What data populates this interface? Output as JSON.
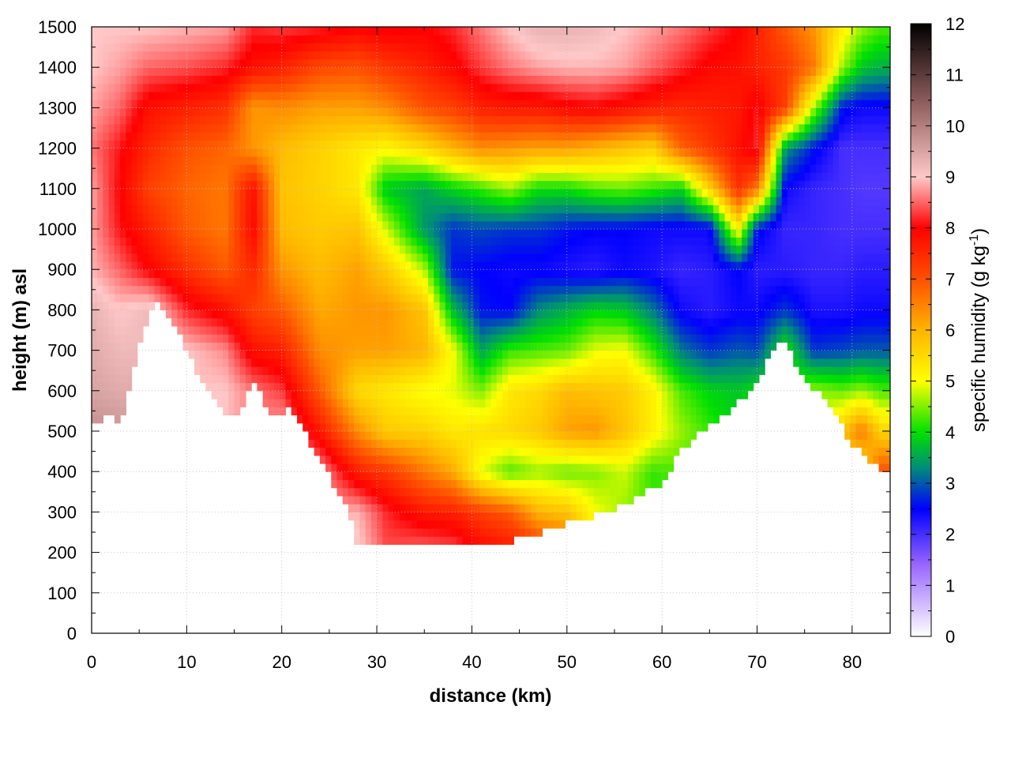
{
  "chart_data": {
    "type": "heatmap",
    "title": "",
    "xlabel": "distance (km)",
    "ylabel": "height (m) asl",
    "colorbar_label": "specific humidity (g kg",
    "colorbar_label_sup": "-1",
    "colorbar_label_end": ")",
    "xlim": [
      0,
      84
    ],
    "ylim": [
      0,
      1500
    ],
    "clim": [
      0,
      12
    ],
    "x_ticks": [
      {
        "value": 0,
        "label": "0"
      },
      {
        "value": 10,
        "label": "10"
      },
      {
        "value": 20,
        "label": "20"
      },
      {
        "value": 30,
        "label": "30"
      },
      {
        "value": 40,
        "label": "40"
      },
      {
        "value": 50,
        "label": "50"
      },
      {
        "value": 60,
        "label": "60"
      },
      {
        "value": 70,
        "label": "70"
      },
      {
        "value": 80,
        "label": "80"
      }
    ],
    "y_ticks": [
      {
        "value": 0,
        "label": "0"
      },
      {
        "value": 100,
        "label": "100"
      },
      {
        "value": 200,
        "label": "200"
      },
      {
        "value": 300,
        "label": "300"
      },
      {
        "value": 400,
        "label": "400"
      },
      {
        "value": 500,
        "label": "500"
      },
      {
        "value": 600,
        "label": "600"
      },
      {
        "value": 700,
        "label": "700"
      },
      {
        "value": 800,
        "label": "800"
      },
      {
        "value": 900,
        "label": "900"
      },
      {
        "value": 1000,
        "label": "1000"
      },
      {
        "value": 1100,
        "label": "1100"
      },
      {
        "value": 1200,
        "label": "1200"
      },
      {
        "value": 1300,
        "label": "1300"
      },
      {
        "value": 1400,
        "label": "1400"
      },
      {
        "value": 1500,
        "label": "1500"
      }
    ],
    "colorbar_ticks": [
      {
        "value": 0,
        "label": "0"
      },
      {
        "value": 1,
        "label": "1"
      },
      {
        "value": 2,
        "label": "2"
      },
      {
        "value": 3,
        "label": "3"
      },
      {
        "value": 4,
        "label": "4"
      },
      {
        "value": 5,
        "label": "5"
      },
      {
        "value": 6,
        "label": "6"
      },
      {
        "value": 7,
        "label": "7"
      },
      {
        "value": 8,
        "label": "8"
      },
      {
        "value": 9,
        "label": "9"
      },
      {
        "value": 10,
        "label": "10"
      },
      {
        "value": 11,
        "label": "11"
      },
      {
        "value": 12,
        "label": "12"
      }
    ],
    "colormap": [
      {
        "value": 0,
        "color": "#ffffff"
      },
      {
        "value": 1.4,
        "color": "#9966ff"
      },
      {
        "value": 2.5,
        "color": "#0000ff"
      },
      {
        "value": 3.3,
        "color": "#008c7a"
      },
      {
        "value": 4.0,
        "color": "#00e000"
      },
      {
        "value": 5.0,
        "color": "#ffff00"
      },
      {
        "value": 6.0,
        "color": "#ffb400"
      },
      {
        "value": 7.0,
        "color": "#ff5000"
      },
      {
        "value": 8.0,
        "color": "#ff0000"
      },
      {
        "value": 9.0,
        "color": "#ffc8c8"
      },
      {
        "value": 10.5,
        "color": "#8c5a5a"
      },
      {
        "value": 12,
        "color": "#000000"
      }
    ],
    "grid": true,
    "x_distance_km": [
      0,
      2,
      3,
      5,
      7,
      10,
      12,
      15,
      17,
      19,
      21,
      24,
      27,
      28,
      30,
      33,
      37,
      40,
      42,
      45,
      48,
      50,
      53,
      56,
      58,
      60,
      62,
      64,
      67,
      68,
      70,
      72,
      73,
      75,
      77,
      80,
      83
    ],
    "terrain_height_m": [
      510,
      540,
      505,
      720,
      830,
      700,
      600,
      525,
      620,
      535,
      560,
      430,
      310,
      215,
      230,
      228,
      222,
      222,
      222,
      232,
      255,
      270,
      290,
      320,
      345,
      370,
      450,
      500,
      545,
      570,
      620,
      720,
      720,
      620,
      580,
      470,
      400
    ],
    "profile_heights_m": [
      200,
      300,
      400,
      500,
      600,
      700,
      800,
      900,
      1000,
      1100,
      1200,
      1300,
      1400,
      1500
    ],
    "profiles": [
      {
        "x": 0,
        "q": [
          null,
          null,
          null,
          9.8,
          9.5,
          9.4,
          9.3,
          8.9,
          8.8,
          8.8,
          8.6,
          8.8,
          9.0,
          null
        ]
      },
      {
        "x": 3,
        "q": [
          null,
          null,
          null,
          9.7,
          9.4,
          9.2,
          9.0,
          8.5,
          8.1,
          8.0,
          8.1,
          8.5,
          8.8,
          9.0
        ]
      },
      {
        "x": 6,
        "q": [
          null,
          null,
          null,
          null,
          null,
          null,
          9.2,
          8.0,
          7.6,
          7.2,
          7.5,
          7.8,
          8.5,
          9.0
        ]
      },
      {
        "x": 10,
        "q": [
          null,
          null,
          null,
          null,
          null,
          9.0,
          8.2,
          7.4,
          6.9,
          6.8,
          7.0,
          7.6,
          8.4,
          8.9
        ]
      },
      {
        "x": 14,
        "q": [
          null,
          null,
          null,
          null,
          9.0,
          8.7,
          7.8,
          6.9,
          6.6,
          6.6,
          6.8,
          7.4,
          8.2,
          8.8
        ]
      },
      {
        "x": 17,
        "q": [
          null,
          null,
          null,
          null,
          8.6,
          7.8,
          7.2,
          7.5,
          7.9,
          7.8,
          6.3,
          6.3,
          7.8,
          8.2
        ]
      },
      {
        "x": 20,
        "q": [
          null,
          null,
          null,
          8.9,
          8.3,
          7.6,
          6.9,
          6.3,
          5.9,
          5.8,
          5.9,
          6.4,
          7.6,
          8.3
        ]
      },
      {
        "x": 24,
        "q": [
          null,
          null,
          8.8,
          7.7,
          6.9,
          6.4,
          6.1,
          5.9,
          5.7,
          5.6,
          5.6,
          6.2,
          7.1,
          8.2
        ]
      },
      {
        "x": 28,
        "q": [
          9.1,
          8.9,
          7.6,
          6.4,
          5.5,
          6.2,
          6.3,
          6.2,
          5.8,
          5.3,
          5.3,
          6.2,
          7.0,
          8.0
        ]
      },
      {
        "x": 31,
        "q": [
          8.4,
          8.2,
          7.3,
          5.7,
          5.3,
          6.2,
          6.3,
          5.7,
          4.8,
          3.8,
          5.1,
          6.4,
          7.3,
          8.1
        ]
      },
      {
        "x": 35,
        "q": [
          8.6,
          7.7,
          6.6,
          5.6,
          5.0,
          6.0,
          5.8,
          4.7,
          3.4,
          3.5,
          5.5,
          7.0,
          7.6,
          8.0
        ]
      },
      {
        "x": 38,
        "q": [
          8.5,
          7.6,
          6.1,
          5.3,
          4.9,
          5.0,
          3.7,
          2.6,
          2.8,
          3.9,
          6.0,
          7.2,
          7.9,
          8.2
        ]
      },
      {
        "x": 41,
        "q": [
          8.0,
          7.2,
          4.9,
          5.4,
          4.5,
          3.5,
          2.6,
          2.5,
          2.9,
          4.2,
          6.4,
          7.6,
          8.3,
          8.6
        ]
      },
      {
        "x": 44,
        "q": [
          7.8,
          6.9,
          4.3,
          5.5,
          5.3,
          4.2,
          2.5,
          2.4,
          2.8,
          4.6,
          6.3,
          7.7,
          8.6,
          9.0
        ]
      },
      {
        "x": 47,
        "q": [
          7.5,
          6.0,
          4.6,
          5.7,
          5.5,
          4.3,
          3.3,
          2.4,
          2.8,
          4.0,
          6.2,
          7.7,
          8.8,
          9.3
        ]
      },
      {
        "x": 50,
        "q": [
          7.0,
          5.8,
          4.4,
          6.2,
          5.9,
          4.4,
          3.6,
          2.3,
          2.6,
          4.0,
          6.2,
          7.9,
          8.9,
          9.3
        ]
      },
      {
        "x": 53,
        "q": [
          null,
          5.0,
          4.5,
          6.3,
          5.8,
          4.9,
          3.9,
          2.2,
          2.5,
          4.3,
          6.0,
          8.0,
          8.9,
          9.2
        ]
      },
      {
        "x": 56,
        "q": [
          null,
          4.6,
          4.8,
          5.8,
          5.7,
          5.0,
          3.8,
          2.4,
          2.5,
          4.4,
          5.8,
          7.8,
          8.8,
          9.0
        ]
      },
      {
        "x": 59,
        "q": [
          null,
          4.2,
          4.2,
          5.2,
          5.2,
          4.2,
          3.2,
          2.3,
          2.4,
          4.2,
          5.6,
          7.6,
          8.5,
          8.8
        ]
      },
      {
        "x": 62,
        "q": [
          null,
          null,
          4.3,
          4.6,
          4.3,
          3.2,
          2.4,
          2.1,
          2.4,
          3.9,
          6.8,
          7.5,
          8.2,
          8.6
        ]
      },
      {
        "x": 65,
        "q": [
          null,
          null,
          null,
          4.2,
          3.9,
          2.8,
          2.2,
          2.2,
          2.4,
          5.6,
          7.3,
          7.6,
          7.9,
          8.3
        ]
      },
      {
        "x": 68,
        "q": [
          null,
          null,
          null,
          null,
          3.8,
          3.0,
          2.4,
          2.5,
          5.2,
          7.4,
          7.8,
          7.7,
          7.8,
          8.0
        ]
      },
      {
        "x": 70,
        "q": [
          null,
          null,
          null,
          null,
          4.0,
          2.9,
          2.4,
          2.2,
          2.6,
          6.6,
          8.2,
          8.1,
          7.6,
          7.6
        ]
      },
      {
        "x": 73,
        "q": [
          null,
          null,
          null,
          null,
          null,
          4.1,
          2.8,
          2.2,
          2.1,
          2.4,
          3.4,
          7.2,
          7.3,
          6.9
        ]
      },
      {
        "x": 76,
        "q": [
          null,
          null,
          null,
          null,
          4.6,
          2.8,
          2.3,
          2.1,
          2.1,
          2.1,
          2.6,
          4.6,
          6.6,
          6.3
        ]
      },
      {
        "x": 79,
        "q": [
          null,
          null,
          null,
          5.8,
          4.4,
          2.9,
          2.3,
          2.1,
          2.0,
          2.0,
          2.0,
          2.6,
          4.6,
          5.2
        ]
      },
      {
        "x": 81,
        "q": [
          null,
          null,
          5.3,
          6.6,
          4.6,
          3.0,
          2.4,
          2.2,
          2.0,
          1.9,
          2.0,
          2.4,
          3.8,
          4.6
        ]
      },
      {
        "x": 83,
        "q": [
          null,
          null,
          7.0,
          5.6,
          4.3,
          3.0,
          2.4,
          2.2,
          2.0,
          1.9,
          2.0,
          2.4,
          3.6,
          4.3
        ]
      }
    ]
  }
}
